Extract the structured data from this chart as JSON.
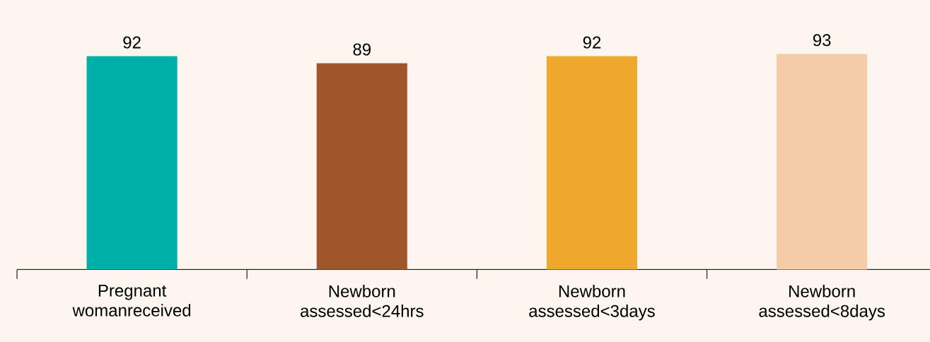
{
  "chart_data": {
    "type": "bar",
    "categories": [
      "Pregnant womanreceived",
      "Newborn assessed<24hrs",
      "Newborn assessed<3days",
      "Newborn assessed<8days"
    ],
    "values": [
      92,
      89,
      92,
      93
    ],
    "colors": [
      "#00b0a8",
      "#a0552b",
      "#f0a72e",
      "#f4cda8"
    ],
    "data_labels": true
  }
}
